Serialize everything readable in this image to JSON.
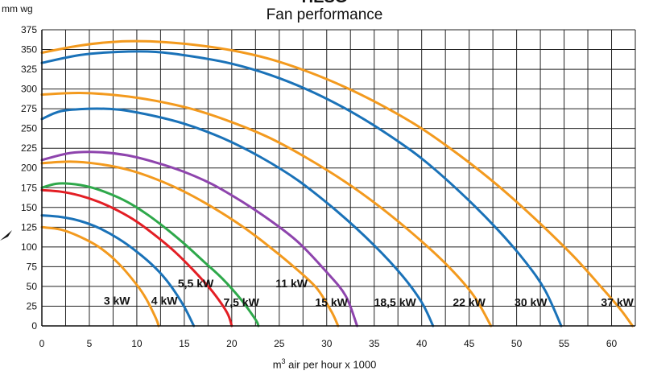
{
  "chart_data": {
    "type": "line",
    "title": "HESG",
    "subtitle": "Fan performance",
    "ylabel": "mm wg",
    "xlabel_prefix": "m",
    "xlabel_sup": "3",
    "xlabel_suffix": " air per hour x 1000",
    "xlim": [
      0,
      62.5
    ],
    "ylim": [
      0,
      375
    ],
    "x_ticks": [
      0,
      5,
      10,
      15,
      20,
      25,
      30,
      35,
      40,
      45,
      50,
      55,
      60
    ],
    "y_ticks": [
      0,
      25,
      50,
      75,
      100,
      125,
      150,
      175,
      200,
      225,
      250,
      275,
      300,
      325,
      350,
      375
    ],
    "grid": true,
    "series": [
      {
        "name": "3 kW",
        "color": "#f39a1e",
        "points": [
          [
            0,
            125
          ],
          [
            2,
            122
          ],
          [
            4,
            113
          ],
          [
            6,
            100
          ],
          [
            8,
            80
          ],
          [
            10,
            52
          ],
          [
            11,
            34
          ],
          [
            12,
            10
          ],
          [
            12.3,
            0
          ]
        ]
      },
      {
        "name": "4 kW",
        "color": "#1a72b8",
        "points": [
          [
            0,
            140
          ],
          [
            2,
            138
          ],
          [
            4,
            133
          ],
          [
            6,
            124
          ],
          [
            8,
            111
          ],
          [
            10,
            94
          ],
          [
            12,
            73
          ],
          [
            13.5,
            52
          ],
          [
            15,
            24
          ],
          [
            16,
            0
          ]
        ]
      },
      {
        "name": "5,5 kW",
        "color": "#e31e24",
        "points": [
          [
            0,
            172
          ],
          [
            2,
            170
          ],
          [
            4,
            165
          ],
          [
            6,
            157
          ],
          [
            8,
            146
          ],
          [
            10,
            132
          ],
          [
            12,
            114
          ],
          [
            14,
            94
          ],
          [
            16,
            70
          ],
          [
            18,
            43
          ],
          [
            19.5,
            17
          ],
          [
            20,
            0
          ]
        ]
      },
      {
        "name": "7,5 kW",
        "color": "#2ea84a",
        "points": [
          [
            0,
            175
          ],
          [
            1.5,
            180
          ],
          [
            3,
            180
          ],
          [
            5,
            176
          ],
          [
            7,
            168
          ],
          [
            9,
            157
          ],
          [
            11,
            142
          ],
          [
            13,
            124
          ],
          [
            15,
            104
          ],
          [
            17,
            82
          ],
          [
            19,
            60
          ],
          [
            21,
            33
          ],
          [
            22.5,
            8
          ],
          [
            22.8,
            0
          ]
        ]
      },
      {
        "name": "11 kW",
        "color": "#f39a1e",
        "points": [
          [
            0,
            206
          ],
          [
            3,
            208
          ],
          [
            6,
            205
          ],
          [
            9,
            198
          ],
          [
            12,
            186
          ],
          [
            15,
            170
          ],
          [
            18,
            150
          ],
          [
            21,
            127
          ],
          [
            24,
            100
          ],
          [
            27,
            70
          ],
          [
            29,
            47
          ],
          [
            30.5,
            18
          ],
          [
            31.2,
            0
          ]
        ]
      },
      {
        "name": "15 kW",
        "color": "#8e44ad",
        "points": [
          [
            0,
            210
          ],
          [
            3,
            219
          ],
          [
            6,
            220
          ],
          [
            9,
            216
          ],
          [
            12,
            207
          ],
          [
            15,
            195
          ],
          [
            18,
            179
          ],
          [
            21,
            158
          ],
          [
            24,
            134
          ],
          [
            27,
            106
          ],
          [
            30,
            68
          ],
          [
            32,
            38
          ],
          [
            33.2,
            0
          ]
        ]
      },
      {
        "name": "18,5 kW",
        "color": "#1a72b8",
        "points": [
          [
            0,
            262
          ],
          [
            2,
            272
          ],
          [
            5,
            275
          ],
          [
            8,
            274
          ],
          [
            11,
            268
          ],
          [
            15,
            256
          ],
          [
            19,
            238
          ],
          [
            23,
            214
          ],
          [
            27,
            184
          ],
          [
            31,
            146
          ],
          [
            35,
            102
          ],
          [
            38,
            63
          ],
          [
            40,
            30
          ],
          [
            41.2,
            0
          ]
        ]
      },
      {
        "name": "22 kW",
        "color": "#f39a1e",
        "points": [
          [
            0,
            293
          ],
          [
            4,
            295
          ],
          [
            8,
            292
          ],
          [
            12,
            285
          ],
          [
            16,
            274
          ],
          [
            20,
            258
          ],
          [
            24,
            238
          ],
          [
            28,
            212
          ],
          [
            32,
            182
          ],
          [
            36,
            147
          ],
          [
            40,
            107
          ],
          [
            43,
            73
          ],
          [
            45.5,
            38
          ],
          [
            47.3,
            0
          ]
        ]
      },
      {
        "name": "30 kW",
        "color": "#1a72b8",
        "points": [
          [
            0,
            333
          ],
          [
            4,
            343
          ],
          [
            8,
            347
          ],
          [
            12,
            347
          ],
          [
            16,
            341
          ],
          [
            20,
            332
          ],
          [
            24,
            318
          ],
          [
            28,
            299
          ],
          [
            32,
            275
          ],
          [
            36,
            246
          ],
          [
            40,
            212
          ],
          [
            44,
            170
          ],
          [
            48,
            122
          ],
          [
            51,
            80
          ],
          [
            53,
            45
          ],
          [
            54.7,
            0
          ]
        ]
      },
      {
        "name": "37 kW",
        "color": "#f39a1e",
        "points": [
          [
            0,
            346
          ],
          [
            4,
            355
          ],
          [
            8,
            360
          ],
          [
            12,
            360
          ],
          [
            16,
            356
          ],
          [
            20,
            349
          ],
          [
            24,
            338
          ],
          [
            28,
            322
          ],
          [
            32,
            302
          ],
          [
            36,
            278
          ],
          [
            40,
            250
          ],
          [
            44,
            216
          ],
          [
            48,
            178
          ],
          [
            52,
            135
          ],
          [
            56,
            88
          ],
          [
            59,
            48
          ],
          [
            61,
            20
          ],
          [
            62.2,
            0
          ]
        ]
      }
    ],
    "labels": [
      {
        "text": "3 kW",
        "x": 7.9,
        "y": 32
      },
      {
        "text": "4 kW",
        "x": 12.9,
        "y": 32
      },
      {
        "text": "5,5 kW",
        "x": 16.2,
        "y": 54
      },
      {
        "text": "7,5 kW",
        "x": 21.0,
        "y": 30
      },
      {
        "text": "11 kW",
        "x": 26.3,
        "y": 54
      },
      {
        "text": "15 kW",
        "x": 30.5,
        "y": 30
      },
      {
        "text": "18,5 kW",
        "x": 37.2,
        "y": 30
      },
      {
        "text": "22 kW",
        "x": 45.0,
        "y": 30
      },
      {
        "text": "30 kW",
        "x": 51.5,
        "y": 30
      },
      {
        "text": "37 kW",
        "x": 60.6,
        "y": 30
      }
    ]
  }
}
